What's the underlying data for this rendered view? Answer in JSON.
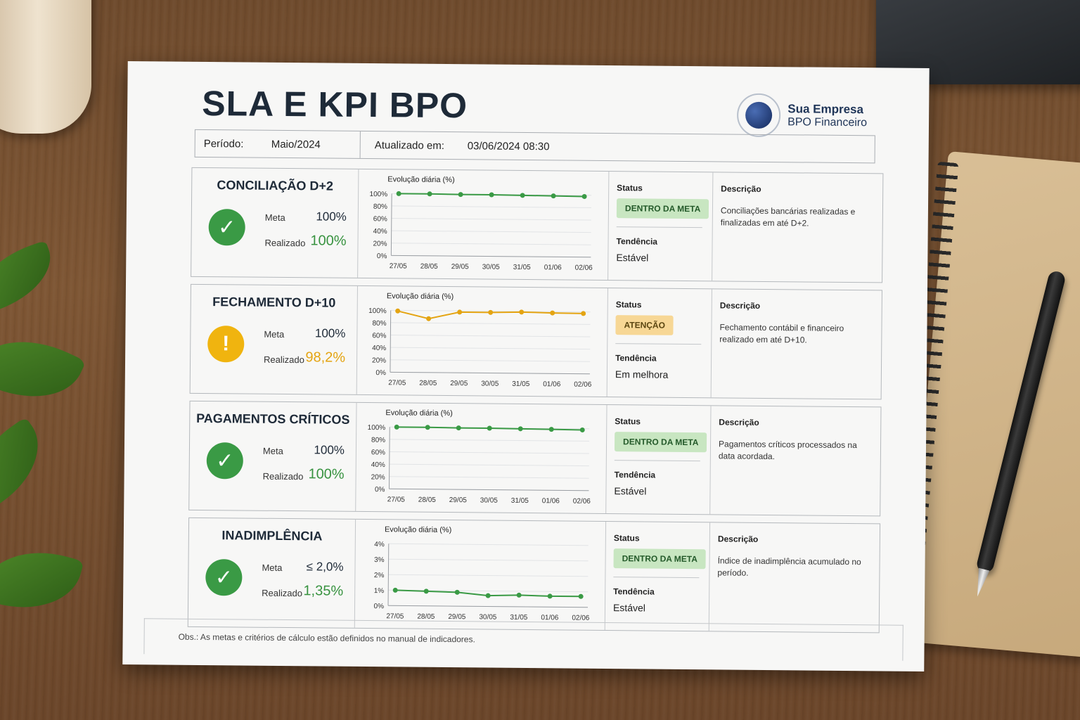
{
  "title": "SLA E KPI BPO",
  "logo": {
    "name": "Sua Empresa",
    "subtitle": "BPO Financeiro"
  },
  "header": {
    "period_label": "Período:",
    "period_value": "Maio/2024",
    "updated_label": "Atualizado em:",
    "updated_value": "03/06/2024 08:30"
  },
  "labels": {
    "meta": "Meta",
    "realizado": "Realizado",
    "chart_title": "Evolução diária (%)",
    "status": "Status",
    "tendencia": "Tendência",
    "descricao": "Descrição"
  },
  "colors": {
    "ok": "#3a9a45",
    "warn": "#f0b40f"
  },
  "kpis": [
    {
      "title": "CONCILIAÇÃO D+2",
      "state": "ok",
      "icon": "check-icon",
      "meta": "100%",
      "realizado": "100%",
      "status": "DENTRO DA META",
      "tendencia": "Estável",
      "descricao": "Conciliações bancárias realizadas e finalizadas em até D+2."
    },
    {
      "title": "FECHAMENTO D+10",
      "state": "warn",
      "icon": "exclamation-icon",
      "meta": "100%",
      "realizado": "98,2%",
      "status": "ATENÇÃO",
      "tendencia": "Em melhora",
      "descricao": "Fechamento contábil e financeiro realizado em até D+10."
    },
    {
      "title": "PAGAMENTOS CRÍTICOS",
      "state": "ok",
      "icon": "check-icon",
      "meta": "100%",
      "realizado": "100%",
      "status": "DENTRO DA META",
      "tendencia": "Estável",
      "descricao": "Pagamentos críticos processados na data acordada."
    },
    {
      "title": "INADIMPLÊNCIA",
      "state": "ok",
      "icon": "check-icon",
      "meta": "≤ 2,0%",
      "realizado": "1,35%",
      "status": "DENTRO DA META",
      "tendencia": "Estável",
      "descricao": "Índice de inadimplência acumulado no período."
    }
  ],
  "chart_data": [
    {
      "type": "line",
      "title": "Evolução diária (%)",
      "x": [
        "27/05",
        "28/05",
        "29/05",
        "30/05",
        "31/05",
        "01/06",
        "02/06"
      ],
      "yticks": [
        "0%",
        "20%",
        "40%",
        "60%",
        "80%",
        "100%"
      ],
      "ylim": [
        0,
        100
      ],
      "series": [
        {
          "values": [
            100,
            100,
            99.5,
            99.5,
            99,
            98.5,
            98
          ],
          "color": "#3a9a45"
        }
      ]
    },
    {
      "type": "line",
      "title": "Evolução diária (%)",
      "x": [
        "27/05",
        "28/05",
        "29/05",
        "30/05",
        "31/05",
        "01/06",
        "02/06"
      ],
      "yticks": [
        "0%",
        "20%",
        "40%",
        "60%",
        "80%",
        "100%"
      ],
      "ylim": [
        0,
        100
      ],
      "series": [
        {
          "values": [
            99,
            87,
            98,
            98,
            99,
            98,
            97.5
          ],
          "color": "#e4a412"
        }
      ]
    },
    {
      "type": "line",
      "title": "Evolução diária (%)",
      "x": [
        "27/05",
        "28/05",
        "29/05",
        "30/05",
        "31/05",
        "01/06",
        "02/06"
      ],
      "yticks": [
        "0%",
        "20%",
        "40%",
        "60%",
        "80%",
        "100%"
      ],
      "ylim": [
        0,
        100
      ],
      "series": [
        {
          "values": [
            100,
            100,
            99.5,
            99.5,
            99,
            98.5,
            98
          ],
          "color": "#3a9a45"
        }
      ]
    },
    {
      "type": "line",
      "title": "Evolução diária (%)",
      "x": [
        "27/05",
        "28/05",
        "29/05",
        "30/05",
        "31/05",
        "01/06",
        "02/06"
      ],
      "yticks": [
        "0%",
        "1%",
        "2%",
        "3%",
        "4%"
      ],
      "ylim": [
        0,
        4
      ],
      "series": [
        {
          "values": [
            1.0,
            0.95,
            0.9,
            0.7,
            0.75,
            0.7,
            0.7
          ],
          "color": "#3a9a45"
        }
      ]
    }
  ],
  "footnote": "Obs.: As metas e critérios de cálculo estão definidos no manual de indicadores."
}
